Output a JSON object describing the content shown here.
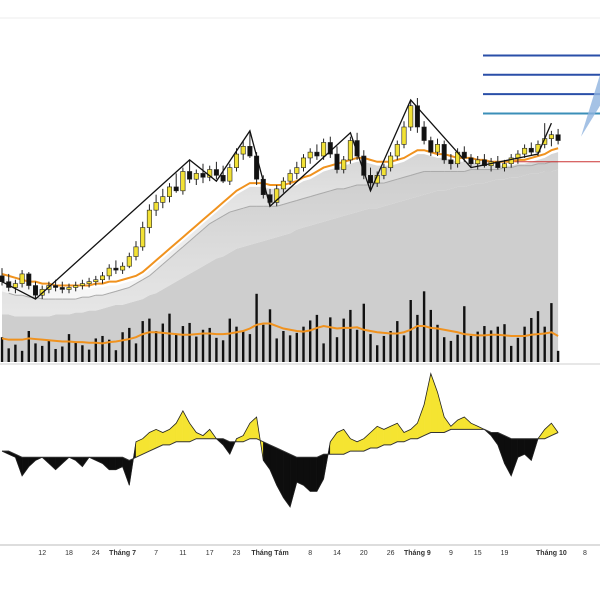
{
  "chart_data": {
    "type": "candlestick",
    "title": "",
    "colors": {
      "bull": "#f2e135",
      "bear": "#111111",
      "candle_outline": "#222222",
      "moving_average": "#f0921e",
      "zigzag": "#111111",
      "volume": "#111111",
      "volume_average": "#f0921e",
      "fib_levels": "#2a4fa8",
      "fib_base": "#3b8fb8",
      "red_marker": "#cc3333",
      "oscillator_positive": "#f5e431",
      "oscillator_negative": "#0d0d0d",
      "oscillator_signal": "#333333",
      "bands": "#bdbdbd"
    },
    "x_axis": {
      "ticks": [
        {
          "label": "12",
          "index": 6,
          "bold": false
        },
        {
          "label": "18",
          "index": 10,
          "bold": false
        },
        {
          "label": "24",
          "index": 14,
          "bold": false
        },
        {
          "label": "Tháng 7",
          "index": 18,
          "bold": true
        },
        {
          "label": "7",
          "index": 23,
          "bold": false
        },
        {
          "label": "11",
          "index": 27,
          "bold": false
        },
        {
          "label": "17",
          "index": 31,
          "bold": false
        },
        {
          "label": "23",
          "index": 35,
          "bold": false
        },
        {
          "label": "Tháng Tám",
          "index": 40,
          "bold": true
        },
        {
          "label": "8",
          "index": 46,
          "bold": false
        },
        {
          "label": "14",
          "index": 50,
          "bold": false
        },
        {
          "label": "20",
          "index": 54,
          "bold": false
        },
        {
          "label": "26",
          "index": 58,
          "bold": false
        },
        {
          "label": "Tháng 9",
          "index": 62,
          "bold": true
        },
        {
          "label": "9",
          "index": 67,
          "bold": false
        },
        {
          "label": "15",
          "index": 71,
          "bold": false
        },
        {
          "label": "19",
          "index": 75,
          "bold": false
        },
        {
          "label": "Tháng 10",
          "index": 82,
          "bold": true
        },
        {
          "label": "8",
          "index": 87,
          "bold": false
        }
      ]
    },
    "candles": [
      {
        "o": 23.8,
        "h": 24.2,
        "l": 23.3,
        "c": 23.5
      },
      {
        "o": 23.5,
        "h": 23.9,
        "l": 23.0,
        "c": 23.2
      },
      {
        "o": 23.2,
        "h": 23.6,
        "l": 22.9,
        "c": 23.4
      },
      {
        "o": 23.4,
        "h": 24.1,
        "l": 23.2,
        "c": 23.9
      },
      {
        "o": 23.9,
        "h": 24.0,
        "l": 23.1,
        "c": 23.3
      },
      {
        "o": 23.3,
        "h": 23.5,
        "l": 22.6,
        "c": 22.8
      },
      {
        "o": 22.8,
        "h": 23.3,
        "l": 22.6,
        "c": 23.1
      },
      {
        "o": 23.1,
        "h": 23.5,
        "l": 22.9,
        "c": 23.3
      },
      {
        "o": 23.3,
        "h": 23.6,
        "l": 23.0,
        "c": 23.2
      },
      {
        "o": 23.2,
        "h": 23.5,
        "l": 22.9,
        "c": 23.1
      },
      {
        "o": 23.1,
        "h": 23.4,
        "l": 22.9,
        "c": 23.2
      },
      {
        "o": 23.2,
        "h": 23.5,
        "l": 23.0,
        "c": 23.3
      },
      {
        "o": 23.3,
        "h": 23.6,
        "l": 23.1,
        "c": 23.4
      },
      {
        "o": 23.4,
        "h": 23.7,
        "l": 23.2,
        "c": 23.5
      },
      {
        "o": 23.5,
        "h": 23.8,
        "l": 23.3,
        "c": 23.6
      },
      {
        "o": 23.6,
        "h": 24.0,
        "l": 23.4,
        "c": 23.8
      },
      {
        "o": 23.8,
        "h": 24.4,
        "l": 23.6,
        "c": 24.2
      },
      {
        "o": 24.2,
        "h": 24.6,
        "l": 23.9,
        "c": 24.1
      },
      {
        "o": 24.1,
        "h": 24.5,
        "l": 23.9,
        "c": 24.3
      },
      {
        "o": 24.3,
        "h": 25.0,
        "l": 24.2,
        "c": 24.8
      },
      {
        "o": 24.8,
        "h": 25.6,
        "l": 24.6,
        "c": 25.3
      },
      {
        "o": 25.3,
        "h": 26.6,
        "l": 25.1,
        "c": 26.3
      },
      {
        "o": 26.3,
        "h": 27.5,
        "l": 26.0,
        "c": 27.2
      },
      {
        "o": 27.2,
        "h": 28.0,
        "l": 26.9,
        "c": 27.6
      },
      {
        "o": 27.6,
        "h": 28.3,
        "l": 27.3,
        "c": 27.9
      },
      {
        "o": 27.9,
        "h": 28.6,
        "l": 27.6,
        "c": 28.4
      },
      {
        "o": 28.4,
        "h": 29.1,
        "l": 28.1,
        "c": 28.2
      },
      {
        "o": 28.2,
        "h": 29.4,
        "l": 28.0,
        "c": 29.2
      },
      {
        "o": 29.2,
        "h": 29.8,
        "l": 28.6,
        "c": 28.8
      },
      {
        "o": 28.8,
        "h": 29.3,
        "l": 28.5,
        "c": 29.1
      },
      {
        "o": 29.1,
        "h": 29.6,
        "l": 28.6,
        "c": 28.9
      },
      {
        "o": 28.9,
        "h": 29.5,
        "l": 28.7,
        "c": 29.3
      },
      {
        "o": 29.3,
        "h": 29.7,
        "l": 28.8,
        "c": 29.0
      },
      {
        "o": 29.0,
        "h": 29.5,
        "l": 28.6,
        "c": 28.7
      },
      {
        "o": 28.7,
        "h": 29.6,
        "l": 28.5,
        "c": 29.4
      },
      {
        "o": 29.4,
        "h": 30.4,
        "l": 29.2,
        "c": 30.1
      },
      {
        "o": 30.1,
        "h": 30.8,
        "l": 29.8,
        "c": 30.5
      },
      {
        "o": 30.5,
        "h": 31.3,
        "l": 29.9,
        "c": 30.0
      },
      {
        "o": 30.0,
        "h": 30.2,
        "l": 28.5,
        "c": 28.8
      },
      {
        "o": 28.8,
        "h": 29.0,
        "l": 27.8,
        "c": 28.0
      },
      {
        "o": 28.0,
        "h": 28.3,
        "l": 27.4,
        "c": 27.6
      },
      {
        "o": 27.6,
        "h": 28.5,
        "l": 27.4,
        "c": 28.3
      },
      {
        "o": 28.3,
        "h": 28.9,
        "l": 28.1,
        "c": 28.7
      },
      {
        "o": 28.7,
        "h": 29.3,
        "l": 28.5,
        "c": 29.1
      },
      {
        "o": 29.1,
        "h": 29.7,
        "l": 28.8,
        "c": 29.4
      },
      {
        "o": 29.4,
        "h": 30.1,
        "l": 29.2,
        "c": 29.9
      },
      {
        "o": 29.9,
        "h": 30.4,
        "l": 29.6,
        "c": 30.2
      },
      {
        "o": 30.2,
        "h": 30.6,
        "l": 29.8,
        "c": 30.0
      },
      {
        "o": 30.0,
        "h": 30.9,
        "l": 29.8,
        "c": 30.7
      },
      {
        "o": 30.7,
        "h": 31.0,
        "l": 29.9,
        "c": 30.1
      },
      {
        "o": 30.1,
        "h": 30.5,
        "l": 29.1,
        "c": 29.3
      },
      {
        "o": 29.3,
        "h": 30.0,
        "l": 29.1,
        "c": 29.8
      },
      {
        "o": 29.8,
        "h": 31.0,
        "l": 29.6,
        "c": 30.8
      },
      {
        "o": 30.8,
        "h": 31.2,
        "l": 29.8,
        "c": 30.0
      },
      {
        "o": 30.0,
        "h": 30.3,
        "l": 28.8,
        "c": 29.0
      },
      {
        "o": 29.0,
        "h": 29.4,
        "l": 28.2,
        "c": 28.6
      },
      {
        "o": 28.6,
        "h": 29.2,
        "l": 28.4,
        "c": 29.0
      },
      {
        "o": 29.0,
        "h": 29.6,
        "l": 28.8,
        "c": 29.4
      },
      {
        "o": 29.4,
        "h": 30.2,
        "l": 29.2,
        "c": 30.0
      },
      {
        "o": 30.0,
        "h": 30.8,
        "l": 29.8,
        "c": 30.6
      },
      {
        "o": 30.6,
        "h": 31.8,
        "l": 30.4,
        "c": 31.5
      },
      {
        "o": 31.5,
        "h": 32.9,
        "l": 31.3,
        "c": 32.6
      },
      {
        "o": 32.6,
        "h": 33.0,
        "l": 31.2,
        "c": 31.5
      },
      {
        "o": 31.5,
        "h": 31.8,
        "l": 30.6,
        "c": 30.8
      },
      {
        "o": 30.8,
        "h": 31.0,
        "l": 30.0,
        "c": 30.2
      },
      {
        "o": 30.2,
        "h": 30.9,
        "l": 30.0,
        "c": 30.6
      },
      {
        "o": 30.6,
        "h": 30.8,
        "l": 29.6,
        "c": 29.8
      },
      {
        "o": 29.8,
        "h": 30.1,
        "l": 29.3,
        "c": 29.6
      },
      {
        "o": 29.6,
        "h": 30.4,
        "l": 29.4,
        "c": 30.2
      },
      {
        "o": 30.2,
        "h": 30.5,
        "l": 29.7,
        "c": 29.9
      },
      {
        "o": 29.9,
        "h": 30.1,
        "l": 29.4,
        "c": 29.6
      },
      {
        "o": 29.6,
        "h": 30.0,
        "l": 29.3,
        "c": 29.8
      },
      {
        "o": 29.8,
        "h": 30.1,
        "l": 29.4,
        "c": 29.5
      },
      {
        "o": 29.5,
        "h": 29.9,
        "l": 29.2,
        "c": 29.7
      },
      {
        "o": 29.7,
        "h": 30.0,
        "l": 29.3,
        "c": 29.4
      },
      {
        "o": 29.4,
        "h": 29.8,
        "l": 29.2,
        "c": 29.6
      },
      {
        "o": 29.6,
        "h": 30.1,
        "l": 29.4,
        "c": 29.9
      },
      {
        "o": 29.9,
        "h": 30.3,
        "l": 29.6,
        "c": 30.1
      },
      {
        "o": 30.1,
        "h": 30.6,
        "l": 29.9,
        "c": 30.4
      },
      {
        "o": 30.4,
        "h": 30.7,
        "l": 30.0,
        "c": 30.2
      },
      {
        "o": 30.2,
        "h": 30.8,
        "l": 30.0,
        "c": 30.6
      },
      {
        "o": 30.6,
        "h": 31.7,
        "l": 30.4,
        "c": 30.9
      },
      {
        "o": 30.9,
        "h": 31.3,
        "l": 30.5,
        "c": 31.1
      },
      {
        "o": 31.1,
        "h": 31.4,
        "l": 30.6,
        "c": 30.8
      }
    ],
    "moving_average": [
      23.9,
      23.8,
      23.7,
      23.6,
      23.5,
      23.5,
      23.4,
      23.4,
      23.3,
      23.3,
      23.3,
      23.3,
      23.3,
      23.3,
      23.4,
      23.4,
      23.5,
      23.5,
      23.6,
      23.7,
      23.8,
      24.0,
      24.3,
      24.6,
      24.9,
      25.2,
      25.5,
      25.8,
      26.1,
      26.4,
      26.7,
      27.0,
      27.3,
      27.6,
      27.9,
      28.2,
      28.4,
      28.6,
      28.6,
      28.6,
      28.5,
      28.5,
      28.5,
      28.6,
      28.7,
      28.9,
      29.0,
      29.2,
      29.4,
      29.5,
      29.6,
      29.7,
      29.8,
      29.9,
      29.9,
      29.8,
      29.7,
      29.7,
      29.7,
      29.8,
      29.9,
      30.1,
      30.3,
      30.3,
      30.2,
      30.1,
      30.1,
      30.0,
      29.9,
      29.9,
      29.9,
      29.8,
      29.8,
      29.7,
      29.7,
      29.7,
      29.7,
      29.8,
      29.8,
      29.9,
      30.0,
      30.1,
      30.3,
      30.4
    ],
    "band_upper": [
      23.0,
      22.9,
      22.8,
      22.8,
      22.7,
      22.7,
      22.6,
      22.6,
      22.6,
      22.6,
      22.6,
      22.6,
      22.7,
      22.7,
      22.8,
      22.8,
      22.9,
      23.0,
      23.1,
      23.2,
      23.4,
      23.6,
      23.8,
      24.1,
      24.4,
      24.7,
      25.0,
      25.3,
      25.6,
      25.9,
      26.2,
      26.5,
      26.7,
      26.9,
      27.1,
      27.2,
      27.3,
      27.4,
      27.4,
      27.4,
      27.4,
      27.4,
      27.5,
      27.6,
      27.7,
      27.8,
      27.9,
      28.0,
      28.1,
      28.2,
      28.3,
      28.3,
      28.4,
      28.5,
      28.5,
      28.5,
      28.6,
      28.6,
      28.7,
      28.8,
      28.9,
      29.0,
      29.1,
      29.2,
      29.2,
      29.2,
      29.2,
      29.2,
      29.2,
      29.2,
      29.3,
      29.3,
      29.3,
      29.3,
      29.3,
      29.4,
      29.4,
      29.5,
      29.5,
      29.5,
      29.6,
      29.6,
      29.7,
      29.7
    ],
    "band_lower": [
      21.8,
      21.8,
      21.7,
      21.7,
      21.7,
      21.7,
      21.7,
      21.7,
      21.8,
      21.8,
      21.8,
      21.9,
      21.9,
      22.0,
      22.0,
      22.1,
      22.2,
      22.3,
      22.3,
      22.4,
      22.5,
      22.6,
      22.8,
      22.9,
      23.1,
      23.3,
      23.5,
      23.7,
      23.9,
      24.1,
      24.3,
      24.5,
      24.7,
      24.8,
      25.0,
      25.2,
      25.3,
      25.4,
      25.5,
      25.6,
      25.7,
      25.8,
      25.9,
      26.0,
      26.2,
      26.3,
      26.4,
      26.5,
      26.6,
      26.7,
      26.8,
      26.9,
      27.0,
      27.1,
      27.2,
      27.3,
      27.3,
      27.4,
      27.5,
      27.6,
      27.7,
      27.8,
      27.9,
      28.0,
      28.1,
      28.2,
      28.2,
      28.3,
      28.4,
      28.4,
      28.5,
      28.6,
      28.6,
      28.7,
      28.8,
      28.8,
      28.9,
      28.9,
      29.0,
      29.1,
      29.1,
      29.2,
      29.2,
      29.3
    ],
    "zigzag": [
      [
        0,
        23.5
      ],
      [
        5,
        22.6
      ],
      [
        28,
        29.8
      ],
      [
        32,
        28.7
      ],
      [
        37,
        31.3
      ],
      [
        40,
        27.4
      ],
      [
        52,
        31.2
      ],
      [
        55,
        28.2
      ],
      [
        61,
        32.9
      ],
      [
        70,
        29.4
      ],
      [
        80,
        30.1
      ],
      [
        82,
        31.7
      ]
    ],
    "fib_levels": [
      35.2,
      34.2,
      33.2,
      32.2
    ],
    "red_marker_level": 29.7,
    "volume": [
      40,
      22,
      28,
      18,
      50,
      30,
      26,
      34,
      21,
      25,
      45,
      32,
      27,
      20,
      38,
      42,
      36,
      19,
      48,
      55,
      30,
      66,
      70,
      50,
      62,
      78,
      44,
      58,
      63,
      41,
      52,
      55,
      39,
      35,
      70,
      57,
      49,
      45,
      110,
      60,
      85,
      38,
      50,
      43,
      47,
      57,
      67,
      76,
      30,
      72,
      40,
      70,
      84,
      52,
      94,
      45,
      27,
      42,
      50,
      66,
      43,
      100,
      76,
      114,
      84,
      60,
      40,
      34,
      44,
      90,
      42,
      49,
      58,
      51,
      57,
      61,
      26,
      39,
      57,
      71,
      82,
      57,
      95,
      18
    ],
    "volume_average": [
      38,
      36,
      36,
      36,
      38,
      37,
      36,
      35,
      34,
      33,
      33,
      32,
      32,
      31,
      31,
      30,
      32,
      33,
      35,
      37,
      40,
      45,
      48,
      48,
      47,
      46,
      45,
      44,
      44,
      45,
      46,
      46,
      45,
      45,
      46,
      48,
      50,
      54,
      60,
      62,
      62,
      58,
      54,
      52,
      50,
      49,
      51,
      55,
      58,
      56,
      54,
      55,
      55,
      56,
      52,
      50,
      48,
      47,
      46,
      46,
      48,
      52,
      58,
      58,
      55,
      54,
      52,
      50,
      48,
      45,
      44,
      43,
      43,
      44,
      44,
      43,
      42,
      42,
      42,
      44,
      45,
      46,
      48,
      42
    ],
    "oscillator": [
      -1,
      -2,
      -3,
      -9,
      -6,
      -4,
      -3,
      -5,
      -7,
      -5,
      -3,
      -4,
      -6,
      -3,
      -4,
      -5,
      -7,
      -7,
      -6,
      -12,
      2,
      3,
      5,
      6,
      5,
      6,
      8,
      12,
      8,
      5,
      4,
      6,
      3,
      1,
      -2,
      3,
      4,
      8,
      10,
      -4,
      -7,
      -12,
      -16,
      -19,
      -11,
      -12,
      -14,
      -14,
      -10,
      2,
      5,
      6,
      3,
      2,
      3,
      5,
      7,
      6,
      7,
      8,
      5,
      6,
      8,
      14,
      24,
      18,
      10,
      7,
      9,
      10,
      8,
      7,
      6,
      4,
      1,
      -5,
      -9,
      -3,
      -2,
      -4,
      3,
      6,
      8,
      5
    ],
    "oscillator_signal": [
      -1,
      -1,
      -2,
      -3,
      -3,
      -3,
      -3,
      -3,
      -3,
      -3,
      -3,
      -3,
      -3,
      -3,
      -3,
      -3,
      -3,
      -3,
      -3,
      -4,
      -3,
      -2,
      -1,
      0,
      1,
      1,
      2,
      2,
      2,
      3,
      3,
      3,
      3,
      3,
      2,
      2,
      2,
      3,
      3,
      2,
      1,
      0,
      -1,
      -2,
      -3,
      -3,
      -3,
      -3,
      -2,
      -2,
      -2,
      -2,
      -1,
      -1,
      -1,
      0,
      0,
      1,
      1,
      2,
      2,
      3,
      3,
      4,
      5,
      5,
      5,
      6,
      6,
      6,
      6,
      6,
      6,
      5,
      5,
      4,
      3,
      3,
      3,
      3,
      3,
      3,
      4,
      5
    ]
  }
}
